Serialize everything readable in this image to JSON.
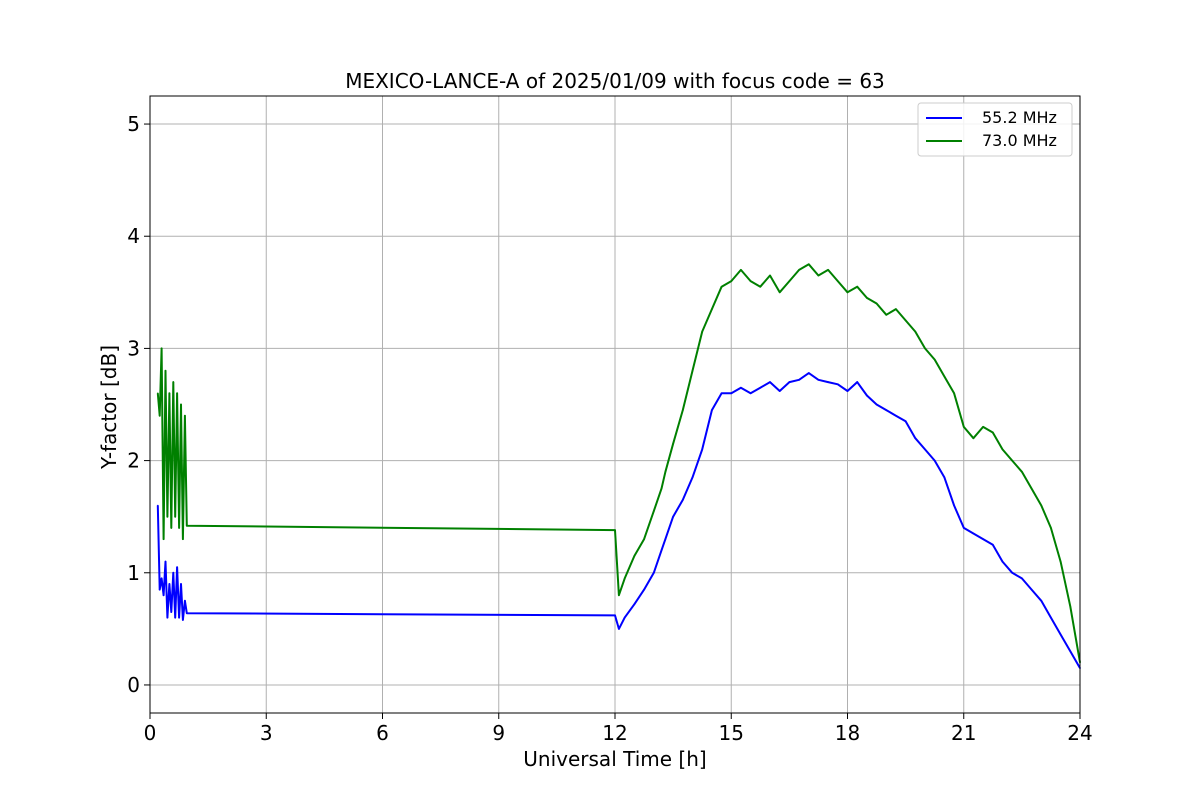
{
  "chart_data": {
    "type": "line",
    "title": "MEXICO-LANCE-A of 2025/01/09 with focus code = 63",
    "xlabel": "Universal Time [h]",
    "ylabel": "Y-factor [dB]",
    "xlim": [
      0,
      24
    ],
    "ylim": [
      -0.25,
      5.25
    ],
    "xticks": [
      0,
      3,
      6,
      9,
      12,
      15,
      18,
      21,
      24
    ],
    "xtick_labels": [
      "0",
      "3",
      "6",
      "9",
      "12",
      "15",
      "18",
      "21",
      "24"
    ],
    "yticks": [
      0,
      1,
      2,
      3,
      4,
      5
    ],
    "ytick_labels": [
      "0",
      "1",
      "2",
      "3",
      "4",
      "5"
    ],
    "grid": true,
    "legend_position": "top-right",
    "series": [
      {
        "name": "55.2 MHz",
        "color": "#0000ff",
        "x": [
          0.2,
          0.25,
          0.3,
          0.35,
          0.4,
          0.45,
          0.5,
          0.55,
          0.6,
          0.65,
          0.7,
          0.75,
          0.8,
          0.85,
          0.9,
          0.95,
          12.0,
          12.1,
          12.25,
          12.5,
          12.75,
          13.0,
          13.2,
          13.3,
          13.5,
          13.75,
          14.0,
          14.25,
          14.5,
          14.75,
          15.0,
          15.25,
          15.5,
          15.75,
          16.0,
          16.25,
          16.5,
          16.75,
          17.0,
          17.25,
          17.5,
          17.75,
          18.0,
          18.25,
          18.5,
          18.75,
          19.0,
          19.25,
          19.5,
          19.75,
          20.0,
          20.25,
          20.5,
          20.75,
          21.0,
          21.25,
          21.5,
          21.75,
          22.0,
          22.25,
          22.5,
          22.75,
          23.0,
          23.25,
          23.5,
          23.75,
          24.0
        ],
        "y": [
          1.6,
          0.85,
          0.95,
          0.8,
          1.1,
          0.6,
          0.9,
          0.65,
          1.0,
          0.6,
          1.05,
          0.6,
          0.9,
          0.58,
          0.75,
          0.64,
          0.62,
          0.5,
          0.6,
          0.72,
          0.85,
          1.0,
          1.2,
          1.3,
          1.5,
          1.65,
          1.85,
          2.1,
          2.45,
          2.6,
          2.6,
          2.65,
          2.6,
          2.65,
          2.7,
          2.62,
          2.7,
          2.72,
          2.78,
          2.72,
          2.7,
          2.68,
          2.62,
          2.7,
          2.58,
          2.5,
          2.45,
          2.4,
          2.35,
          2.2,
          2.1,
          2.0,
          1.85,
          1.6,
          1.4,
          1.35,
          1.3,
          1.25,
          1.1,
          1.0,
          0.95,
          0.85,
          0.75,
          0.6,
          0.45,
          0.3,
          0.15
        ]
      },
      {
        "name": "73.0 MHz",
        "color": "#008000",
        "x": [
          0.2,
          0.25,
          0.3,
          0.35,
          0.4,
          0.45,
          0.5,
          0.55,
          0.6,
          0.65,
          0.7,
          0.75,
          0.8,
          0.85,
          0.9,
          0.95,
          12.0,
          12.1,
          12.25,
          12.5,
          12.75,
          13.0,
          13.2,
          13.3,
          13.5,
          13.75,
          14.0,
          14.25,
          14.5,
          14.75,
          15.0,
          15.25,
          15.5,
          15.75,
          16.0,
          16.25,
          16.5,
          16.75,
          17.0,
          17.25,
          17.5,
          17.75,
          18.0,
          18.25,
          18.5,
          18.75,
          19.0,
          19.25,
          19.5,
          19.75,
          20.0,
          20.25,
          20.5,
          20.75,
          21.0,
          21.25,
          21.5,
          21.75,
          22.0,
          22.25,
          22.5,
          22.75,
          23.0,
          23.25,
          23.5,
          23.75,
          24.0
        ],
        "y": [
          2.6,
          2.4,
          3.0,
          1.3,
          2.8,
          1.5,
          2.6,
          1.4,
          2.7,
          1.5,
          2.6,
          1.4,
          2.5,
          1.3,
          2.4,
          1.42,
          1.38,
          0.8,
          0.95,
          1.15,
          1.3,
          1.55,
          1.75,
          1.9,
          2.15,
          2.45,
          2.8,
          3.15,
          3.35,
          3.55,
          3.6,
          3.7,
          3.6,
          3.55,
          3.65,
          3.5,
          3.6,
          3.7,
          3.75,
          3.65,
          3.7,
          3.6,
          3.5,
          3.55,
          3.45,
          3.4,
          3.3,
          3.35,
          3.25,
          3.15,
          3.0,
          2.9,
          2.75,
          2.6,
          2.3,
          2.2,
          2.3,
          2.25,
          2.1,
          2.0,
          1.9,
          1.75,
          1.6,
          1.4,
          1.1,
          0.7,
          0.2
        ]
      }
    ]
  }
}
